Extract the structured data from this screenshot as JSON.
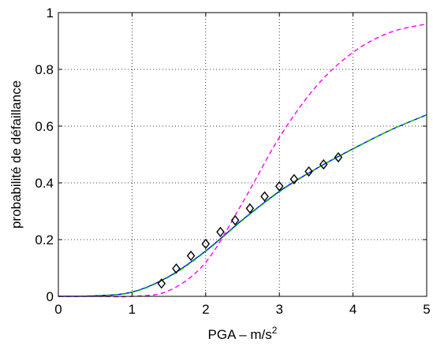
{
  "chart_data": {
    "type": "line",
    "xlabel": "PGA – m/s",
    "xlabel_superscript": "2",
    "ylabel": "probabilité de défaillance",
    "xlim": [
      0,
      5
    ],
    "ylim": [
      0,
      1
    ],
    "xticks": [
      "0",
      "1",
      "2",
      "3",
      "4",
      "5"
    ],
    "yticks": [
      "0",
      "0.2",
      "0.4",
      "0.6",
      "0.8",
      "1"
    ],
    "grid": true,
    "series": [
      {
        "style": "solid",
        "color": "#0000ff",
        "x": [
          0,
          0.5,
          1.0,
          1.5,
          2.0,
          2.5,
          3.0,
          3.5,
          4.0,
          4.5,
          5.0
        ],
        "y": [
          0,
          0.002,
          0.015,
          0.07,
          0.16,
          0.27,
          0.37,
          0.45,
          0.52,
          0.585,
          0.64
        ]
      },
      {
        "style": "dashed",
        "color": "#00cc00",
        "x": [
          0,
          0.5,
          1.0,
          1.5,
          2.0,
          2.5,
          3.0,
          3.5,
          4.0,
          4.5,
          5.0
        ],
        "y": [
          0,
          0.002,
          0.014,
          0.068,
          0.158,
          0.268,
          0.368,
          0.449,
          0.519,
          0.585,
          0.64
        ]
      },
      {
        "style": "dashed",
        "color": "#ff00ff",
        "x": [
          0,
          0.5,
          1.0,
          1.5,
          2.0,
          2.5,
          3.0,
          3.5,
          4.0,
          4.5,
          5.0
        ],
        "y": [
          0,
          0.0,
          0.0,
          0.02,
          0.12,
          0.33,
          0.56,
          0.74,
          0.86,
          0.93,
          0.96
        ]
      },
      {
        "style": "diamond-markers",
        "color": "#000000",
        "x": [
          1.4,
          1.6,
          1.8,
          2.0,
          2.2,
          2.4,
          2.6,
          2.8,
          3.0,
          3.2,
          3.4,
          3.6,
          3.8
        ],
        "y": [
          0.045,
          0.098,
          0.143,
          0.185,
          0.227,
          0.268,
          0.31,
          0.352,
          0.388,
          0.413,
          0.44,
          0.465,
          0.49
        ]
      }
    ]
  }
}
